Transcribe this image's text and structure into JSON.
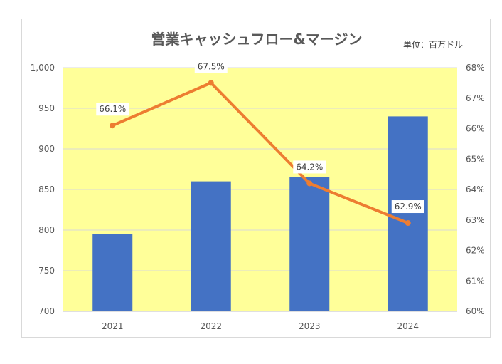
{
  "chart_data": {
    "type": "bar+line",
    "title": "営業キャッシュフロー&マージン",
    "unit_label": "単位：百万ドル",
    "categories": [
      "2021",
      "2022",
      "2023",
      "2024"
    ],
    "series": [
      {
        "name": "営業キャッシュフロー",
        "type": "bar",
        "axis": "left",
        "values": [
          795,
          860,
          865,
          940
        ]
      },
      {
        "name": "マージン",
        "type": "line",
        "axis": "right",
        "values": [
          66.1,
          67.5,
          64.2,
          62.9
        ],
        "labels": [
          "66.1%",
          "67.5%",
          "64.2%",
          "62.9%"
        ]
      }
    ],
    "y_left": {
      "min": 700,
      "max": 1000,
      "step": 50,
      "tick_labels": [
        "700",
        "750",
        "800",
        "850",
        "900",
        "950",
        "1,000"
      ]
    },
    "y_right": {
      "min": 60,
      "max": 68,
      "step": 1,
      "tick_labels": [
        "60%",
        "61%",
        "62%",
        "63%",
        "64%",
        "65%",
        "66%",
        "67%",
        "68%"
      ]
    },
    "colors": {
      "bar": "#4472c4",
      "line": "#ed7d31",
      "plot_bg": "#ffff99",
      "grid": "#d9d9d9"
    },
    "grid": true
  }
}
